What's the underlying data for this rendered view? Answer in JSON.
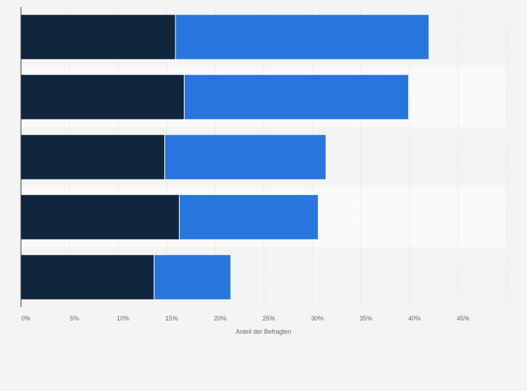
{
  "chart_data": {
    "type": "bar",
    "orientation": "horizontal",
    "stacked": true,
    "categories": [
      "",
      "",
      "",
      "",
      ""
    ],
    "series": [
      {
        "values": [
          15.9,
          16.8,
          14.8,
          16.3,
          13.7
        ],
        "color": "#10263d"
      },
      {
        "values": [
          26.1,
          23.1,
          16.6,
          14.3,
          7.9
        ],
        "color": "#2876dd"
      }
    ],
    "xlim": [
      0,
      50
    ],
    "xticks": [
      0,
      5,
      10,
      15,
      20,
      25,
      30,
      35,
      40,
      45
    ],
    "xtick_labels": [
      "0%",
      "5%",
      "10%",
      "15%",
      "20%",
      "25%",
      "30%",
      "35%",
      "40%",
      "45%"
    ],
    "xlabel": "Anteil der Befragten",
    "title": "",
    "grid": true,
    "legend": "none"
  }
}
